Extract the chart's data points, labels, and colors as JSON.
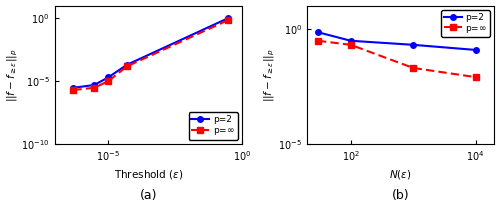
{
  "plot_a": {
    "blue_x": [
      5e-07,
      3e-06,
      1e-05,
      5e-05,
      0.3
    ],
    "blue_y": [
      3e-06,
      5e-06,
      2e-05,
      0.0002,
      1.0
    ],
    "red_x": [
      5e-07,
      3e-06,
      1e-05,
      5e-05,
      0.3
    ],
    "red_y": [
      2e-06,
      3e-06,
      1e-05,
      0.00015,
      0.7
    ],
    "xlabel": "Threshold ($\\epsilon$)",
    "ylabel": "$||f-f_{\\geq\\epsilon}||_p$",
    "xlim": [
      1e-07,
      1.0
    ],
    "ylim": [
      1e-10,
      10.0
    ],
    "xticks": [
      1e-05,
      1.0
    ],
    "yticks": [
      1e-05,
      1.0
    ],
    "label_a": "(a)"
  },
  "plot_b": {
    "blue_x": [
      30,
      100,
      1000,
      10000
    ],
    "blue_y": [
      0.7,
      0.3,
      0.2,
      0.12
    ],
    "red_x": [
      30,
      100,
      1000,
      10000
    ],
    "red_y": [
      0.3,
      0.2,
      0.02,
      0.008
    ],
    "xlabel": "$N(\\epsilon)$",
    "ylabel": "$||f-f_{\\geq\\epsilon}||_p$",
    "xlim": [
      20,
      20000.0
    ],
    "ylim": [
      1e-05,
      10.0
    ],
    "label_b": "(b)"
  },
  "blue_color": "#0000ff",
  "red_color": "#ff0000",
  "legend_p2": "p=2",
  "legend_pinf": "p=$\\infty$"
}
